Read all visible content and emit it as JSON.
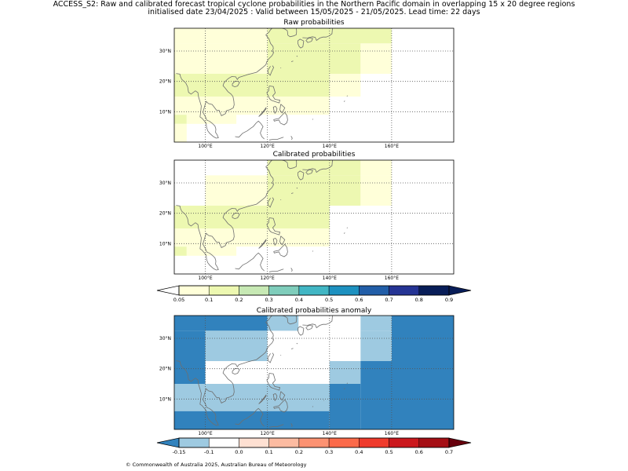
{
  "title_line1": "ACCESS_S2: Raw and calibrated forecast tropical cyclone probabilities in the Northern Pacific domain in overlapping 15 x 20 degree regions",
  "title_line2": "initialised date 23/04/2025 :  Valid between 15/05/2025 - 21/05/2025. Lead time: 22 days",
  "panels": [
    {
      "id": "raw",
      "title": "Raw probabilities",
      "cells": [
        {
          "lon": [
            120,
            160
          ],
          "lat": [
            32.5,
            37.5
          ],
          "color": "#edf8b1"
        },
        {
          "lon": [
            90,
            120
          ],
          "lat": [
            32.5,
            37.5
          ],
          "color": "#ffffd9"
        },
        {
          "lon": [
            90,
            120
          ],
          "lat": [
            22.5,
            32.5
          ],
          "color": "#ffffd9"
        },
        {
          "lon": [
            120,
            150
          ],
          "lat": [
            22.5,
            32.5
          ],
          "color": "#edf8b1"
        },
        {
          "lon": [
            150,
            160
          ],
          "lat": [
            22.5,
            32.5
          ],
          "color": "#ffffd9"
        },
        {
          "lon": [
            90,
            140
          ],
          "lat": [
            15,
            22.5
          ],
          "color": "#edf8b1"
        },
        {
          "lon": [
            140,
            150
          ],
          "lat": [
            15,
            22.5
          ],
          "color": "#ffffd9"
        },
        {
          "lon": [
            90,
            140
          ],
          "lat": [
            9,
            15
          ],
          "color": "#ffffd9"
        },
        {
          "lon": [
            90,
            94
          ],
          "lat": [
            6,
            9
          ],
          "color": "#edf8b1"
        },
        {
          "lon": [
            94,
            110
          ],
          "lat": [
            6,
            9
          ],
          "color": "#ffffd9"
        },
        {
          "lon": [
            90,
            94
          ],
          "lat": [
            0,
            6
          ],
          "color": "#ffffd9"
        }
      ]
    },
    {
      "id": "calibrated",
      "title": "Calibrated probabilities",
      "cells": [
        {
          "lon": [
            120,
            150
          ],
          "lat": [
            32.5,
            37.5
          ],
          "color": "#edf8b1"
        },
        {
          "lon": [
            150,
            160
          ],
          "lat": [
            32.5,
            37.5
          ],
          "color": "#ffffd9"
        },
        {
          "lon": [
            100,
            120
          ],
          "lat": [
            22.5,
            32.5
          ],
          "color": "#ffffd9"
        },
        {
          "lon": [
            120,
            150
          ],
          "lat": [
            22.5,
            32.5
          ],
          "color": "#edf8b1"
        },
        {
          "lon": [
            150,
            160
          ],
          "lat": [
            22.5,
            32.5
          ],
          "color": "#ffffd9"
        },
        {
          "lon": [
            90,
            140
          ],
          "lat": [
            15,
            22.5
          ],
          "color": "#edf8b1"
        },
        {
          "lon": [
            90,
            140
          ],
          "lat": [
            9,
            15
          ],
          "color": "#ffffd9"
        },
        {
          "lon": [
            90,
            94
          ],
          "lat": [
            6,
            9
          ],
          "color": "#edf8b1"
        },
        {
          "lon": [
            94,
            110
          ],
          "lat": [
            6,
            9
          ],
          "color": "#ffffd9"
        }
      ]
    },
    {
      "id": "anomaly",
      "title": "Calibrated probabilities anomaly",
      "cells": [
        {
          "lon": [
            90,
            120
          ],
          "lat": [
            32.5,
            37.5
          ],
          "color": "#3182bd"
        },
        {
          "lon": [
            120,
            130
          ],
          "lat": [
            32.5,
            37.5
          ],
          "color": "#9ecae1"
        },
        {
          "lon": [
            150,
            160
          ],
          "lat": [
            32.5,
            37.5
          ],
          "color": "#9ecae1"
        },
        {
          "lon": [
            160,
            180
          ],
          "lat": [
            22.5,
            37.5
          ],
          "color": "#3182bd"
        },
        {
          "lon": [
            90,
            100
          ],
          "lat": [
            22.5,
            32.5
          ],
          "color": "#3182bd"
        },
        {
          "lon": [
            100,
            120
          ],
          "lat": [
            22.5,
            32.5
          ],
          "color": "#9ecae1"
        },
        {
          "lon": [
            150,
            160
          ],
          "lat": [
            22.5,
            32.5
          ],
          "color": "#9ecae1"
        },
        {
          "lon": [
            90,
            100
          ],
          "lat": [
            15,
            22.5
          ],
          "color": "#3182bd"
        },
        {
          "lon": [
            120,
            140
          ],
          "lat": [
            15,
            22.5
          ],
          "color": "#ffffff"
        },
        {
          "lon": [
            140,
            150
          ],
          "lat": [
            15,
            22.5
          ],
          "color": "#9ecae1"
        },
        {
          "lon": [
            150,
            180
          ],
          "lat": [
            0,
            22.5
          ],
          "color": "#3182bd"
        },
        {
          "lon": [
            90,
            140
          ],
          "lat": [
            6,
            15
          ],
          "color": "#9ecae1"
        },
        {
          "lon": [
            140,
            150
          ],
          "lat": [
            0,
            15
          ],
          "color": "#3182bd"
        },
        {
          "lon": [
            90,
            140
          ],
          "lat": [
            0,
            6
          ],
          "color": "#3182bd"
        }
      ]
    }
  ],
  "map": {
    "lon_range": [
      90,
      180
    ],
    "lat_range": [
      0,
      37.5
    ],
    "lon_ticks": [
      100,
      120,
      140,
      160
    ],
    "lat_ticks": [
      10,
      20,
      30
    ],
    "lon_tick_labels": [
      "100°E",
      "120°E",
      "140°E",
      "160°E"
    ],
    "lat_tick_labels": [
      "10°N",
      "20°N",
      "30°N"
    ],
    "coast_color": "#6e6e6e",
    "frame_color": "#000000"
  },
  "colorbars": [
    {
      "id": "prob",
      "labels": [
        "0.05",
        "0.1",
        "0.2",
        "0.3",
        "0.4",
        "0.5",
        "0.6",
        "0.7",
        "0.8",
        "0.9"
      ],
      "under_color": "#ffffff",
      "over_color": "#081d58",
      "colors": [
        "#ffffd9",
        "#edf8b1",
        "#c7e9b4",
        "#7fcdbb",
        "#41b6c4",
        "#1d91c0",
        "#225ea8",
        "#253494",
        "#081d58"
      ]
    },
    {
      "id": "anom",
      "labels": [
        "-0.15",
        "-0.1",
        "0.0",
        "0.1",
        "0.2",
        "0.3",
        "0.4",
        "0.5",
        "0.6",
        "0.7"
      ],
      "under_color": "#3182bd",
      "over_color": "#67000d",
      "colors": [
        "#9ecae1",
        "#ffffff",
        "#fee0d2",
        "#fcbba1",
        "#fc9272",
        "#fb6a4a",
        "#ef3b2c",
        "#cb181d",
        "#a50f15"
      ]
    }
  ],
  "footer": "© Commonwealth of Australia 2025, Australian Bureau of Meteorology"
}
